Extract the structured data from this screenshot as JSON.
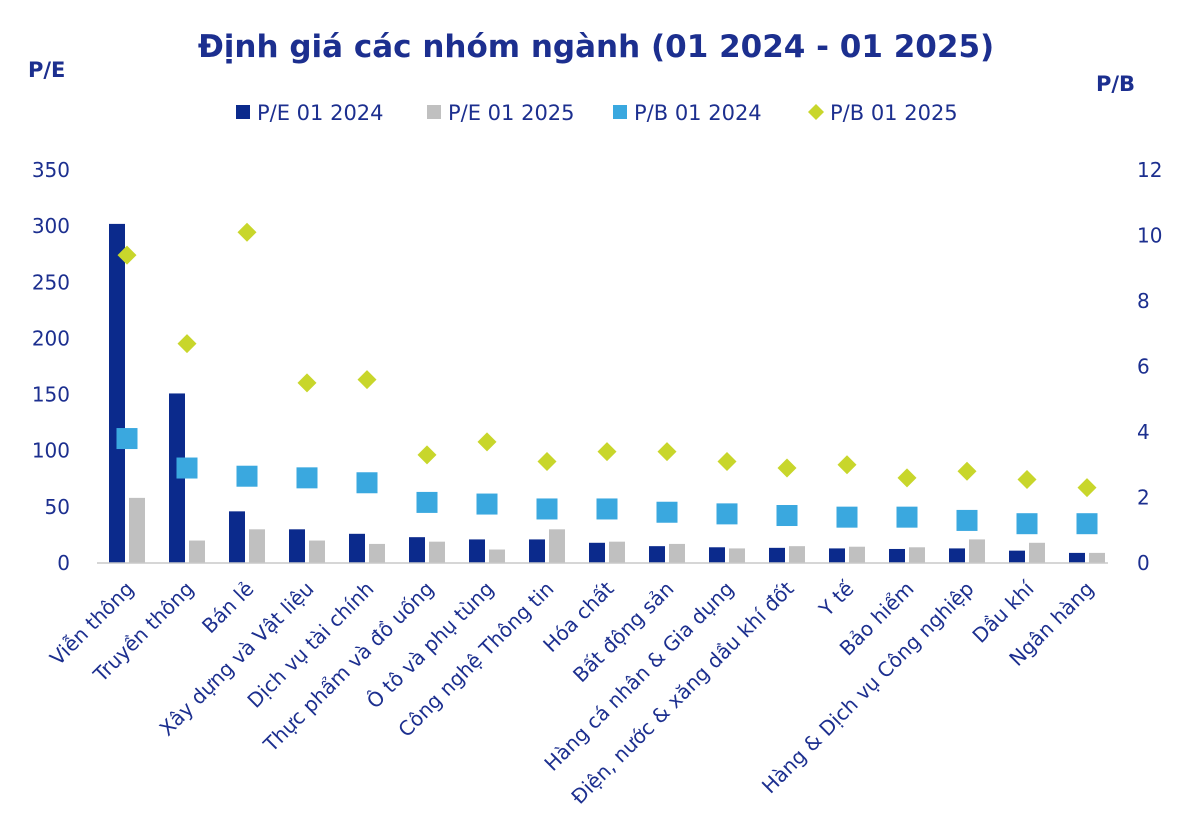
{
  "chart_data": {
    "type": "bar",
    "title": "Định giá các nhóm ngành (01 2024 - 01 2025)",
    "ylabel": "P/E",
    "y2label": "P/B",
    "ylim": [
      0,
      350
    ],
    "y2lim": [
      0,
      12
    ],
    "yticks": [
      "0",
      "50",
      "100",
      "150",
      "200",
      "250",
      "300",
      "350"
    ],
    "y2ticks": [
      "0",
      "2",
      "4",
      "6",
      "8",
      "10",
      "12"
    ],
    "legend_position": "top",
    "grid": false,
    "categories": [
      "Viễn thông",
      "Truyền thông",
      "Bán lẻ",
      "Xây dựng và Vật liệu",
      "Dịch vụ tài chính",
      "Thực phẩm và đồ uống",
      "Ô tô và phụ tùng",
      "Công nghệ Thông tin",
      "Hóa chất",
      "Bất động sản",
      "Hàng cá nhân & Gia dụng",
      "Điện, nước & xăng dầu khí đốt",
      "Y tế",
      "Bảo hiểm",
      "Hàng & Dịch vụ Công nghiệp",
      "Dầu khí",
      "Ngân hàng"
    ],
    "series": [
      {
        "name": "P/E 01 2024",
        "type": "bar",
        "axis": "left",
        "color": "#0b2a8c",
        "values": [
          302,
          151,
          46,
          30,
          26,
          23,
          21,
          21,
          18,
          15,
          14,
          13.5,
          13,
          12.5,
          13,
          11,
          9
        ]
      },
      {
        "name": "P/E 01 2025",
        "type": "bar",
        "axis": "left",
        "color": "#c0c0c0",
        "values": [
          58,
          20,
          30,
          20,
          17,
          19,
          12,
          30,
          19,
          17,
          13,
          15,
          14.5,
          14,
          21,
          18,
          9
        ]
      },
      {
        "name": "P/B 01 2024",
        "type": "marker",
        "marker": "square",
        "axis": "right",
        "color": "#3aa8df",
        "values": [
          3.8,
          2.9,
          2.65,
          2.6,
          2.45,
          1.85,
          1.8,
          1.65,
          1.65,
          1.55,
          1.5,
          1.45,
          1.4,
          1.4,
          1.3,
          1.2,
          1.2
        ]
      },
      {
        "name": "P/B 01 2025",
        "type": "marker",
        "marker": "diamond",
        "axis": "right",
        "color": "#c8d62b",
        "values": [
          9.4,
          6.7,
          10.1,
          5.5,
          5.6,
          3.3,
          3.7,
          3.1,
          3.4,
          3.4,
          3.1,
          2.9,
          3.0,
          2.6,
          2.8,
          2.55,
          2.3
        ]
      }
    ]
  }
}
